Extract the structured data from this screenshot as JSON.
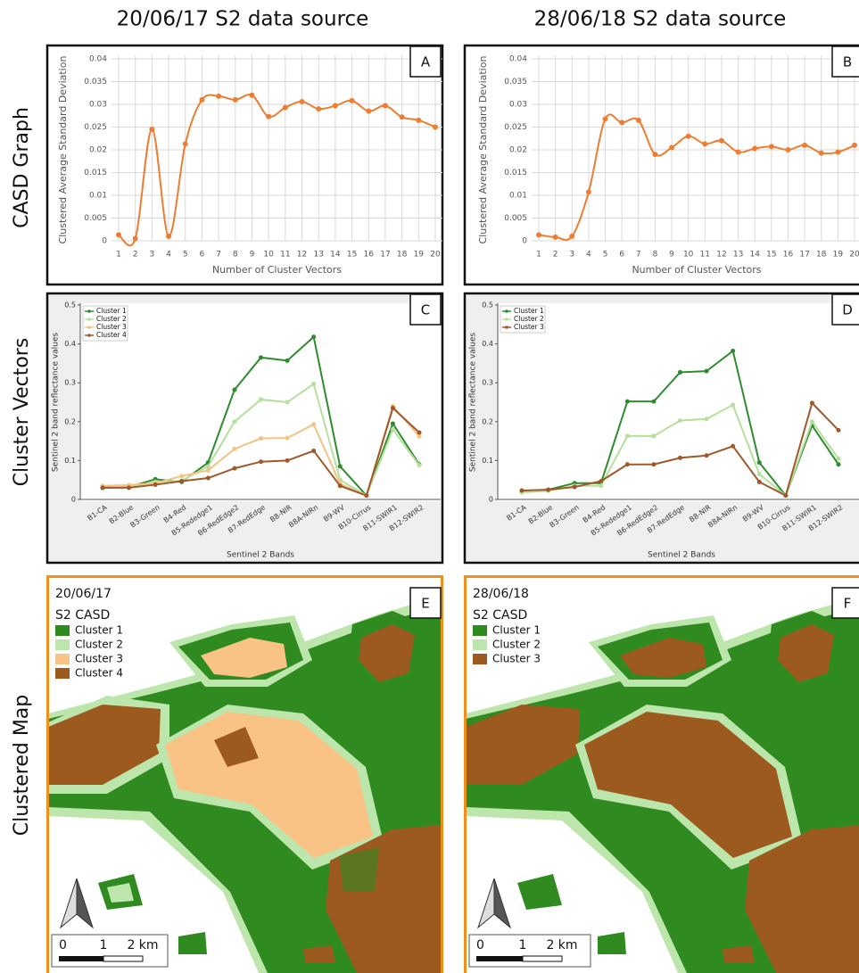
{
  "column_titles": [
    "20/06/17 S2 data source",
    "28/06/18 S2 data source"
  ],
  "row_labels": [
    "CASD Graph",
    "Cluster Vectors",
    "Clustered Map"
  ],
  "chart_data": [
    {
      "type": "line",
      "panel": "A",
      "smooth": true,
      "grid": true,
      "color": "#ed7d31",
      "x": [
        1,
        2,
        3,
        4,
        5,
        6,
        7,
        8,
        9,
        10,
        11,
        12,
        13,
        14,
        15,
        16,
        17,
        18,
        19,
        20
      ],
      "values": [
        0.0013,
        0.0005,
        0.0245,
        0.001,
        0.0213,
        0.031,
        0.0318,
        0.031,
        0.032,
        0.0273,
        0.0293,
        0.0306,
        0.029,
        0.0297,
        0.0308,
        0.0285,
        0.0297,
        0.0272,
        0.0265,
        0.025
      ],
      "xlim": [
        1,
        20
      ],
      "xticks": [
        1,
        2,
        3,
        4,
        5,
        6,
        7,
        8,
        9,
        10,
        11,
        12,
        13,
        14,
        15,
        16,
        17,
        18,
        19,
        20
      ],
      "ylim": [
        0,
        0.04
      ],
      "yticks": [
        0,
        0.005,
        0.01,
        0.015,
        0.02,
        0.025,
        0.03,
        0.035,
        0.04
      ],
      "xlabel": "Number of Cluster Vectors",
      "ylabel": "Clustered Average Standard Deviation"
    },
    {
      "type": "line",
      "panel": "B",
      "smooth": true,
      "grid": true,
      "color": "#ed7d31",
      "x": [
        1,
        2,
        3,
        4,
        5,
        6,
        7,
        8,
        9,
        10,
        11,
        12,
        13,
        14,
        15,
        16,
        17,
        18,
        19,
        20
      ],
      "values": [
        0.0013,
        0.0008,
        0.001,
        0.0107,
        0.0268,
        0.026,
        0.0265,
        0.019,
        0.0205,
        0.023,
        0.0213,
        0.022,
        0.0195,
        0.0203,
        0.0207,
        0.02,
        0.021,
        0.0193,
        0.0195,
        0.021
      ],
      "xlim": [
        1,
        20
      ],
      "xticks": [
        1,
        2,
        3,
        4,
        5,
        6,
        7,
        8,
        9,
        10,
        11,
        12,
        13,
        14,
        15,
        16,
        17,
        18,
        19,
        20
      ],
      "ylim": [
        0,
        0.04
      ],
      "yticks": [
        0,
        0.005,
        0.01,
        0.015,
        0.02,
        0.025,
        0.03,
        0.035,
        0.04
      ],
      "xlabel": "Number of Cluster Vectors",
      "ylabel": "Clustered Average Standard Deviation"
    },
    {
      "type": "line",
      "panel": "C",
      "smooth": false,
      "grid": false,
      "legend": "upper left",
      "categories": [
        "B1-CA",
        "B2-Blue",
        "B3-Green",
        "B4-Red",
        "B5-Rededge1",
        "B6-RedEdge2",
        "B7-RedEdge",
        "B8-NIR",
        "B8A-NIRn",
        "B9-WV",
        "B10-Cirrus",
        "B11-SWIR1",
        "B12-SWIR2"
      ],
      "series": [
        {
          "name": "Cluster 1",
          "color": "#2e8b2e",
          "values": [
            0.03,
            0.032,
            0.052,
            0.045,
            0.095,
            0.282,
            0.365,
            0.357,
            0.418,
            0.085,
            0.01,
            0.195,
            0.09
          ]
        },
        {
          "name": "Cluster 2",
          "color": "#b4e09c",
          "values": [
            0.03,
            0.032,
            0.045,
            0.048,
            0.085,
            0.2,
            0.257,
            0.25,
            0.297,
            0.05,
            0.01,
            0.18,
            0.088
          ]
        },
        {
          "name": "Cluster 3",
          "color": "#f5c283",
          "values": [
            0.035,
            0.037,
            0.042,
            0.06,
            0.075,
            0.13,
            0.157,
            0.158,
            0.193,
            0.04,
            0.01,
            0.24,
            0.162
          ]
        },
        {
          "name": "Cluster 4",
          "color": "#a0582a",
          "values": [
            0.03,
            0.03,
            0.038,
            0.047,
            0.055,
            0.08,
            0.097,
            0.1,
            0.125,
            0.035,
            0.01,
            0.235,
            0.172
          ]
        }
      ],
      "ylim": [
        0,
        0.5
      ],
      "yticks": [
        0,
        0.1,
        0.2,
        0.3,
        0.4,
        0.5
      ],
      "xlabel": "Sentinel 2 Bands",
      "ylabel": "Sentinel 2 band reflectance values"
    },
    {
      "type": "line",
      "panel": "D",
      "smooth": false,
      "grid": false,
      "legend": "upper left",
      "categories": [
        "B1-CA",
        "B2-Blue",
        "B3-Green",
        "B4-Red",
        "B5-Rededge1",
        "B6-RedEdge2",
        "B7-RedEdge",
        "B8-NIR",
        "B8A-NIRn",
        "B9-WV",
        "B10-Cirrus",
        "B11-SWIR1",
        "B12-SWIR2"
      ],
      "series": [
        {
          "name": "Cluster 1",
          "color": "#2e8b2e",
          "values": [
            0.02,
            0.025,
            0.042,
            0.042,
            0.252,
            0.252,
            0.327,
            0.33,
            0.382,
            0.095,
            0.01,
            0.19,
            0.09
          ]
        },
        {
          "name": "Cluster 2",
          "color": "#b4e09c",
          "values": [
            0.018,
            0.022,
            0.035,
            0.035,
            0.163,
            0.163,
            0.203,
            0.207,
            0.243,
            0.065,
            0.01,
            0.2,
            0.105
          ]
        },
        {
          "name": "Cluster 3",
          "color": "#a0582a",
          "values": [
            0.023,
            0.025,
            0.032,
            0.047,
            0.09,
            0.09,
            0.107,
            0.113,
            0.137,
            0.045,
            0.01,
            0.248,
            0.178
          ]
        }
      ],
      "ylim": [
        0,
        0.5
      ],
      "yticks": [
        0,
        0.1,
        0.2,
        0.3,
        0.4,
        0.5
      ],
      "xlabel": "Sentinel 2 Bands",
      "ylabel": "Sentinel 2 band reflectance values"
    }
  ],
  "maps": [
    {
      "panel": "E",
      "date": "20/06/17",
      "label": "S2 CASD",
      "legend": [
        {
          "name": "Cluster 1",
          "color": "#2f8a1f"
        },
        {
          "name": "Cluster 2",
          "color": "#bde6ac"
        },
        {
          "name": "Cluster 3",
          "color": "#f8c384"
        },
        {
          "name": "Cluster 4",
          "color": "#9c5a1e"
        }
      ],
      "scale": [
        "0",
        "1",
        "2 km"
      ]
    },
    {
      "panel": "F",
      "date": "28/06/18",
      "label": "S2 CASD",
      "legend": [
        {
          "name": "Cluster 1",
          "color": "#2f8a1f"
        },
        {
          "name": "Cluster 2",
          "color": "#bde6ac"
        },
        {
          "name": "Cluster 3",
          "color": "#9c5a1e"
        }
      ],
      "scale": [
        "0",
        "1",
        "2 km"
      ]
    }
  ]
}
